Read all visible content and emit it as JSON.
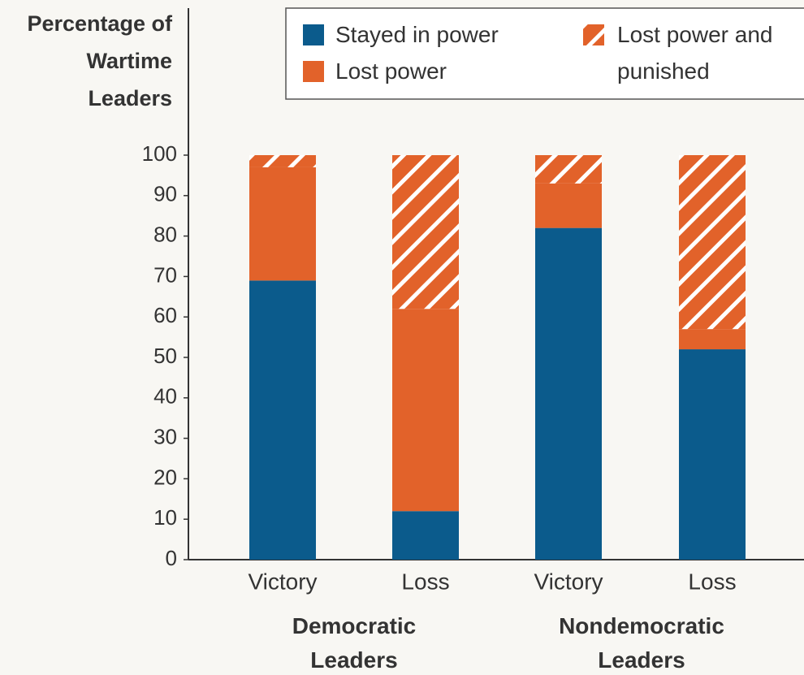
{
  "chart_data": {
    "type": "stacked-bar",
    "y_label": "Percentage of Wartime Leaders",
    "categories": [
      "Victory",
      "Loss",
      "Victory",
      "Loss"
    ],
    "groups": [
      {
        "label": "Democratic Leaders",
        "categories": [
          0,
          1
        ]
      },
      {
        "label": "Nondemocratic Leaders",
        "categories": [
          2,
          3
        ]
      }
    ],
    "series": [
      {
        "name": "Stayed in power",
        "color": "#0b5b8c",
        "hatch": false,
        "values": [
          69,
          12,
          82,
          52
        ]
      },
      {
        "name": "Lost power",
        "color": "#e2622a",
        "hatch": false,
        "values": [
          28,
          50,
          11,
          5
        ]
      },
      {
        "name": "Lost power and punished",
        "color": "#e2622a",
        "hatch": true,
        "values": [
          3,
          38,
          7,
          43
        ]
      }
    ],
    "ylim": [
      0,
      100
    ],
    "yticks": [
      0,
      10,
      20,
      30,
      40,
      50,
      60,
      70,
      80,
      90,
      100
    ],
    "legend": "top"
  }
}
